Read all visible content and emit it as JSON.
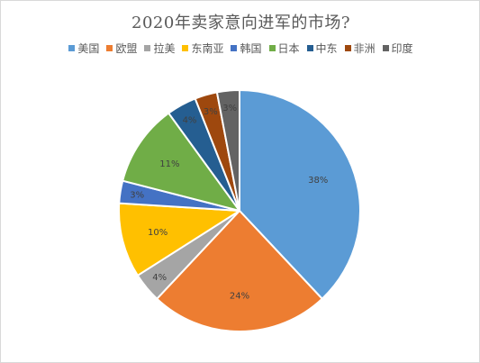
{
  "chart_data": {
    "type": "pie",
    "title": "2020年卖家意向进军的市场?",
    "legend_position": "top",
    "series": [
      {
        "name": "美国",
        "value": 38,
        "label": "38%",
        "color": "#5b9bd5"
      },
      {
        "name": "欧盟",
        "value": 24,
        "label": "24%",
        "color": "#ed7d31"
      },
      {
        "name": "拉美",
        "value": 4,
        "label": "4%",
        "color": "#a5a5a5"
      },
      {
        "name": "东南亚",
        "value": 10,
        "label": "10%",
        "color": "#ffc000"
      },
      {
        "name": "韩国",
        "value": 3,
        "label": "3%",
        "color": "#4472c4"
      },
      {
        "name": "日本",
        "value": 11,
        "label": "11%",
        "color": "#70ad47"
      },
      {
        "name": "中东",
        "value": 4,
        "label": "4%",
        "color": "#255e91"
      },
      {
        "name": "非洲",
        "value": 3,
        "label": "3%",
        "color": "#9e480e"
      },
      {
        "name": "印度",
        "value": 3,
        "label": "3%",
        "color": "#636363"
      }
    ]
  }
}
